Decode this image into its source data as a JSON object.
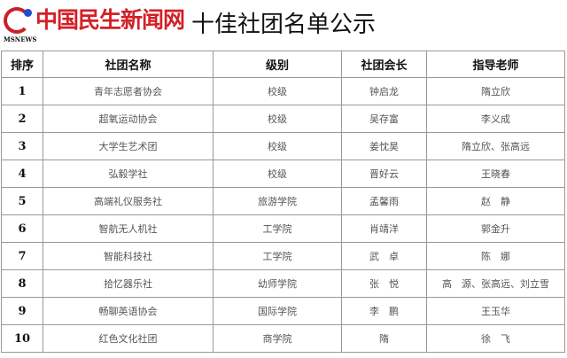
{
  "title": "十佳社团名单公示",
  "headers": [
    "排序",
    "社团名称",
    "级别",
    "社团会长",
    "指导老师"
  ],
  "rows": [
    [
      "1",
      "青年志愿者协会",
      "校级",
      "钟启龙",
      "隋立欣"
    ],
    [
      "2",
      "超氧运动协会",
      "校级",
      "吴存富",
      "李义成"
    ],
    [
      "3",
      "大学生艺术团",
      "校级",
      "姜忱昊",
      "隋立欣、张高远"
    ],
    [
      "4",
      "弘毅学社",
      "校级",
      "晋好云",
      "王晓春"
    ],
    [
      "5",
      "高端礼仪服务社",
      "旅游学院",
      "孟馨雨",
      "赵　静"
    ],
    [
      "6",
      "智航无人机社",
      "工学院",
      "肖靖洋",
      "郭金升"
    ],
    [
      "7",
      "智能科技社",
      "工学院",
      "武　卓",
      "陈　娜"
    ],
    [
      "8",
      "拾忆器乐社",
      "幼师学院",
      "张　悦",
      "高　源、张高远、刘立雪"
    ],
    [
      "9",
      "畅聊英语协会",
      "国际学院",
      "李　鹏",
      "王玉华"
    ],
    [
      "10",
      "红色文化社团",
      "商学院",
      "隋",
      "徐　飞"
    ]
  ],
  "watermark": {
    "text": "中国民生新闻网",
    "sub": "MSNEWS",
    "colors": {
      "text": "#d41f26",
      "accent": "#1b4fd1"
    }
  }
}
